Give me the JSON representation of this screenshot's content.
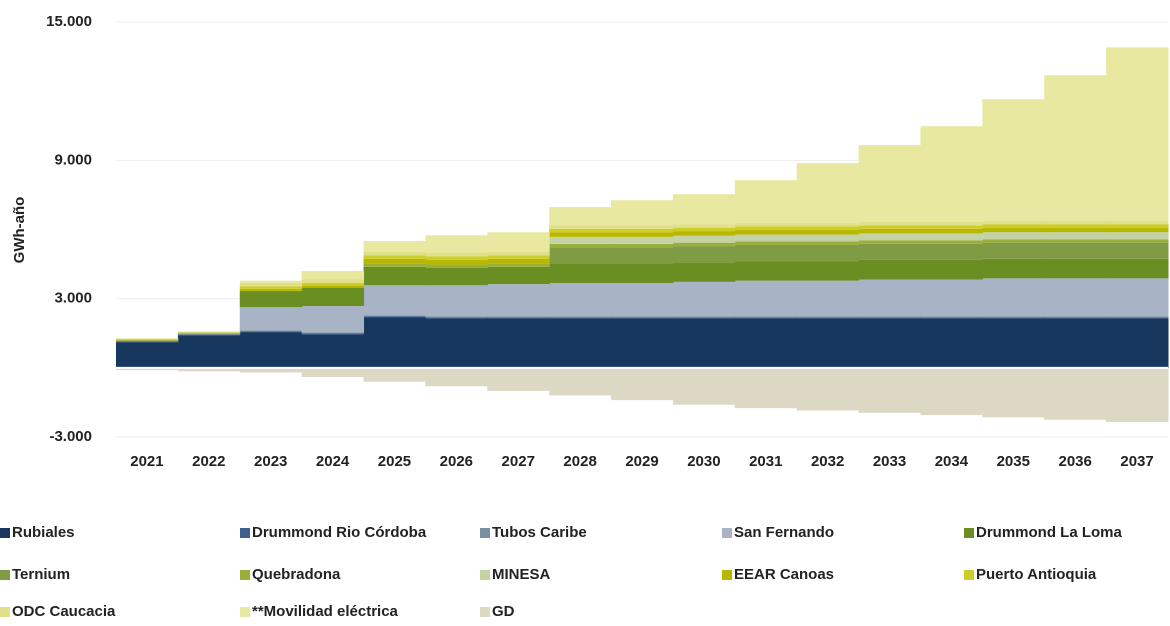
{
  "chart_data": {
    "type": "stacked-step-area",
    "y_axis_label": "GWh-año",
    "categories": [
      "2021",
      "2022",
      "2023",
      "2024",
      "2025",
      "2026",
      "2027",
      "2028",
      "2029",
      "2030",
      "2031",
      "2032",
      "2033",
      "2034",
      "2035",
      "2036",
      "2037"
    ],
    "ylim": [
      -3000,
      15000
    ],
    "yticks": [
      {
        "value": -3000,
        "label": "-3.000"
      },
      {
        "value": 3000,
        "label": "3.000"
      },
      {
        "value": 9000,
        "label": "9.000"
      },
      {
        "value": 15000,
        "label": "15.000"
      }
    ],
    "grid": true,
    "series": [
      {
        "name": "Rubiales",
        "color": "#17375e",
        "values": [
          1100,
          1400,
          1550,
          1450,
          2200,
          2150,
          2150,
          2150,
          2150,
          2150,
          2150,
          2150,
          2150,
          2150,
          2150,
          2150,
          2150
        ]
      },
      {
        "name": "Drummond Rio Córdoba",
        "color": "#3e5e8c",
        "values": [
          40,
          40,
          40,
          40,
          40,
          40,
          40,
          40,
          40,
          40,
          40,
          40,
          40,
          40,
          40,
          40,
          40
        ]
      },
      {
        "name": "Tubos Caribe",
        "color": "#7a8fa6",
        "values": [
          40,
          40,
          40,
          40,
          40,
          40,
          40,
          40,
          40,
          40,
          40,
          40,
          40,
          40,
          40,
          40,
          40
        ]
      },
      {
        "name": "San Fernando",
        "color": "#a8b4c6",
        "values": [
          0,
          0,
          1000,
          1150,
          1300,
          1350,
          1400,
          1450,
          1450,
          1500,
          1550,
          1550,
          1600,
          1600,
          1650,
          1650,
          1650
        ]
      },
      {
        "name": "Drummond La Loma",
        "color": "#6b8e23",
        "values": [
          0,
          0,
          700,
          800,
          800,
          750,
          750,
          850,
          850,
          850,
          850,
          850,
          850,
          850,
          850,
          850,
          850
        ]
      },
      {
        "name": "Ternium",
        "color": "#7f9c44",
        "values": [
          0,
          0,
          0,
          0,
          0,
          0,
          0,
          700,
          700,
          700,
          700,
          700,
          700,
          700,
          700,
          700,
          700
        ]
      },
      {
        "name": "Quebradona",
        "color": "#9aae3a",
        "values": [
          0,
          0,
          0,
          0,
          150,
          150,
          150,
          150,
          150,
          150,
          150,
          150,
          150,
          150,
          150,
          150,
          150
        ]
      },
      {
        "name": "MINESA",
        "color": "#c4d3a6",
        "values": [
          0,
          0,
          0,
          0,
          0,
          0,
          0,
          300,
          300,
          300,
          300,
          300,
          300,
          300,
          300,
          300,
          300
        ]
      },
      {
        "name": "EEAR Canoas",
        "color": "#b8b800",
        "values": [
          50,
          50,
          100,
          100,
          200,
          200,
          200,
          200,
          200,
          200,
          200,
          200,
          200,
          200,
          200,
          200,
          200
        ]
      },
      {
        "name": "Puerto Antioquia",
        "color": "#cdcd2a",
        "values": [
          0,
          0,
          100,
          100,
          150,
          150,
          150,
          150,
          150,
          150,
          150,
          150,
          150,
          150,
          150,
          150,
          150
        ]
      },
      {
        "name": "ODC Caucacia",
        "color": "#e0e08a",
        "values": [
          0,
          0,
          150,
          150,
          150,
          150,
          150,
          150,
          150,
          150,
          150,
          150,
          150,
          150,
          150,
          150,
          150
        ]
      },
      {
        "name": "**Movilidad eléctrica",
        "color": "#e8e8a0",
        "values": [
          50,
          50,
          100,
          370,
          470,
          770,
          850,
          790,
          1090,
          1300,
          1860,
          2600,
          3330,
          4150,
          5270,
          6310,
          7520
        ]
      },
      {
        "name": "GD",
        "color": "#ddd8c4",
        "values": [
          -100,
          -150,
          -200,
          -400,
          -600,
          -800,
          -1000,
          -1200,
          -1400,
          -1600,
          -1750,
          -1850,
          -1950,
          -2050,
          -2150,
          -2250,
          -2350
        ]
      }
    ]
  }
}
